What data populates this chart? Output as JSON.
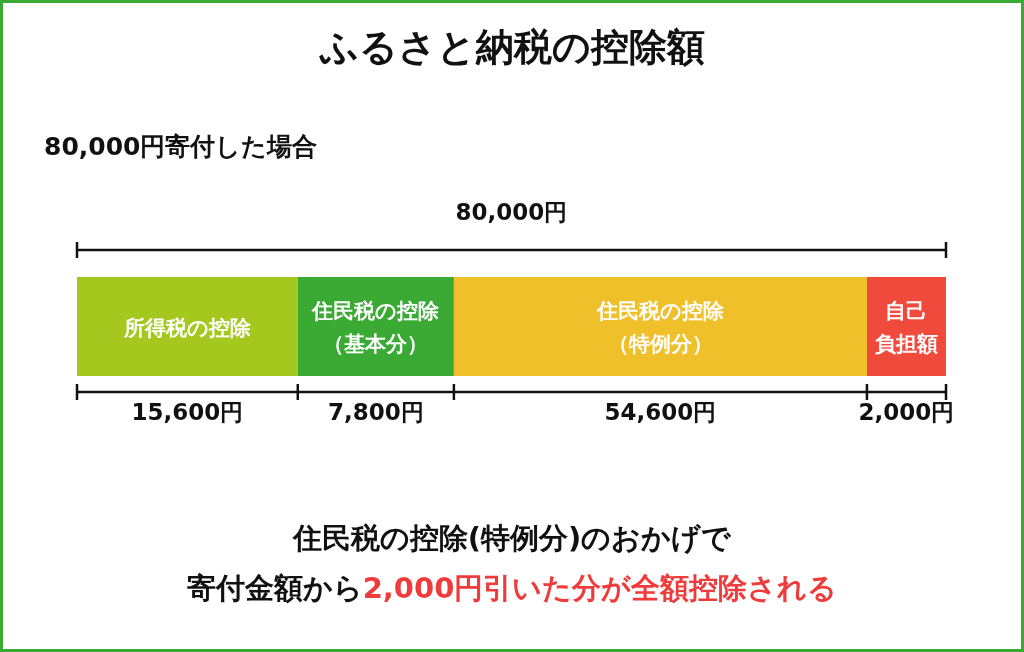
{
  "chart_data": {
    "type": "other",
    "title": "ふるさと納税の控除額",
    "subtitle": "80,000円寄付した場合",
    "categories": [
      "所得税の控除",
      "住民税の控除（基本分）",
      "住民税の控除（特例分）",
      "自己負担額"
    ],
    "values": [
      15600,
      7800,
      54600,
      2000
    ],
    "colors": [
      "#a5c81f",
      "#3aaa35",
      "#f0c02a",
      "#ef4a3c"
    ],
    "value_labels": [
      "15,600円",
      "7,800円",
      "54,600円",
      "2,000円"
    ],
    "totals": [
      "80,000円"
    ],
    "annotations": [
      "住民税の控除(特例分)のおかげで",
      "寄付金額から",
      "2,000円引いた分が全額控除される"
    ]
  }
}
